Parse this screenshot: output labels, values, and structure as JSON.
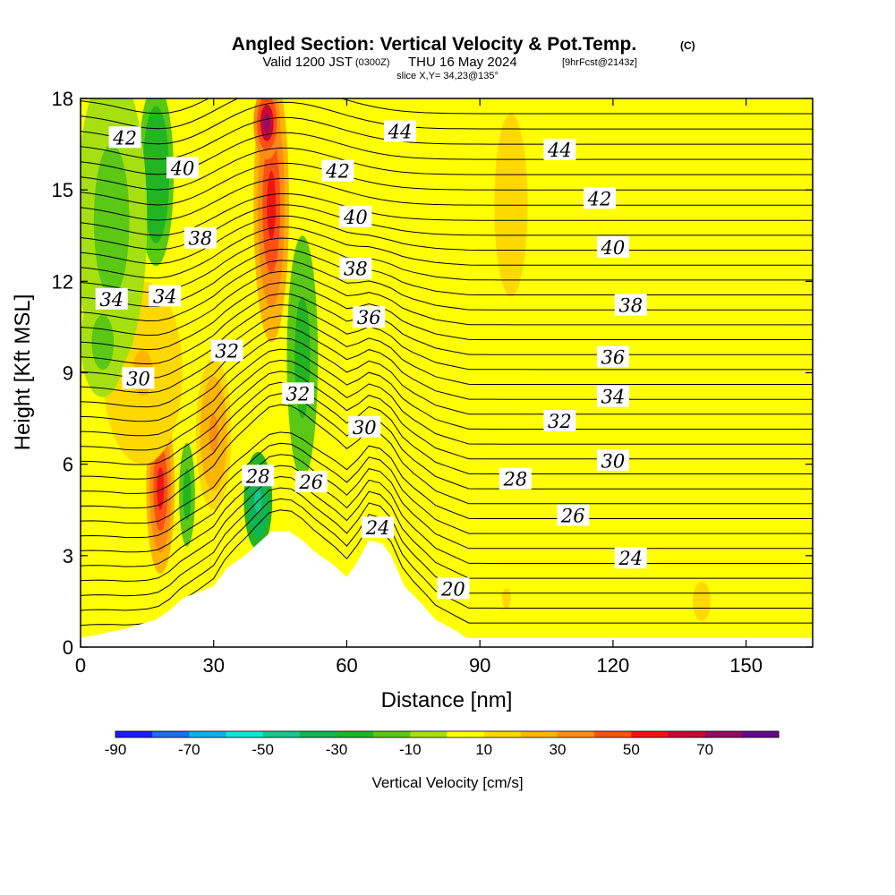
{
  "title": {
    "main": "Angled Section: Vertical Velocity & Pot.Temp.",
    "main_unit": "(C)",
    "valid_prefix": "Valid 1200 JST",
    "valid_utc": "(0300Z)",
    "valid_date": "THU 16 May 2024",
    "forecast": "[9hrFcst@2143z]",
    "slice": "slice X,Y= 34,23@135°"
  },
  "colorbar": {
    "label": "Vertical Velocity [cm/s]",
    "tick_labels": [
      "-90",
      "-70",
      "-50",
      "-30",
      "-10",
      "10",
      "30",
      "50",
      "70"
    ],
    "levels": [
      -90,
      -80,
      -70,
      -60,
      -50,
      -40,
      -30,
      -20,
      -10,
      0,
      10,
      20,
      30,
      40,
      50,
      60,
      70,
      80
    ],
    "colors": [
      "#1c1cff",
      "#1e6cf0",
      "#10b0ee",
      "#10e6d6",
      "#18c88c",
      "#10b450",
      "#22b422",
      "#5ac814",
      "#a6e010",
      "#ffff00",
      "#ffd800",
      "#ffb400",
      "#ff8c14",
      "#ff5014",
      "#f01414",
      "#c80a32",
      "#960a64",
      "#640a8c"
    ]
  },
  "chart_data": {
    "type": "heatmap",
    "title": "Angled Section: Vertical Velocity & Pot.Temp. (C)",
    "xlabel": "Distance [nm]",
    "ylabel": "Height [Kft MSL]",
    "xlim": [
      0,
      165
    ],
    "ylim": [
      0,
      18
    ],
    "x_ticks": [
      0,
      30,
      60,
      90,
      120,
      150
    ],
    "y_ticks": [
      0,
      3,
      6,
      9,
      12,
      15,
      18
    ],
    "fill_variable": "Vertical Velocity [cm/s]",
    "contour_variable": "Potential Temperature (C)",
    "contour_labels": [
      {
        "value": "42",
        "x": 10,
        "y": 16.7
      },
      {
        "value": "40",
        "x": 23,
        "y": 15.7
      },
      {
        "value": "38",
        "x": 27,
        "y": 13.4
      },
      {
        "value": "34",
        "x": 7,
        "y": 11.4
      },
      {
        "value": "34",
        "x": 19,
        "y": 11.5
      },
      {
        "value": "32",
        "x": 33,
        "y": 9.7
      },
      {
        "value": "30",
        "x": 13,
        "y": 8.8
      },
      {
        "value": "32",
        "x": 49,
        "y": 8.3
      },
      {
        "value": "28",
        "x": 40,
        "y": 5.6
      },
      {
        "value": "26",
        "x": 52,
        "y": 5.4
      },
      {
        "value": "44",
        "x": 72,
        "y": 16.9
      },
      {
        "value": "42",
        "x": 58,
        "y": 15.6
      },
      {
        "value": "40",
        "x": 62,
        "y": 14.1
      },
      {
        "value": "38",
        "x": 62,
        "y": 12.4
      },
      {
        "value": "36",
        "x": 65,
        "y": 10.8
      },
      {
        "value": "30",
        "x": 64,
        "y": 7.2
      },
      {
        "value": "24",
        "x": 67,
        "y": 3.9
      },
      {
        "value": "20",
        "x": 84,
        "y": 1.9
      },
      {
        "value": "44",
        "x": 108,
        "y": 16.3
      },
      {
        "value": "42",
        "x": 117,
        "y": 14.7
      },
      {
        "value": "40",
        "x": 120,
        "y": 13.1
      },
      {
        "value": "38",
        "x": 124,
        "y": 11.2
      },
      {
        "value": "36",
        "x": 120,
        "y": 9.5
      },
      {
        "value": "34",
        "x": 120,
        "y": 8.2
      },
      {
        "value": "32",
        "x": 108,
        "y": 7.4
      },
      {
        "value": "30",
        "x": 120,
        "y": 6.1
      },
      {
        "value": "28",
        "x": 98,
        "y": 5.5
      },
      {
        "value": "26",
        "x": 111,
        "y": 4.3
      },
      {
        "value": "24",
        "x": 124,
        "y": 2.9
      }
    ],
    "terrain_profile": [
      {
        "x": 0,
        "y": 0.3
      },
      {
        "x": 10,
        "y": 0.6
      },
      {
        "x": 17,
        "y": 0.9
      },
      {
        "x": 20,
        "y": 1.2
      },
      {
        "x": 23,
        "y": 1.6
      },
      {
        "x": 30,
        "y": 2.0
      },
      {
        "x": 33,
        "y": 2.6
      },
      {
        "x": 37,
        "y": 3.0
      },
      {
        "x": 40,
        "y": 3.4
      },
      {
        "x": 43,
        "y": 3.8
      },
      {
        "x": 47,
        "y": 3.8
      },
      {
        "x": 50,
        "y": 3.5
      },
      {
        "x": 53,
        "y": 3.1
      },
      {
        "x": 57,
        "y": 2.7
      },
      {
        "x": 60,
        "y": 2.3
      },
      {
        "x": 62,
        "y": 2.7
      },
      {
        "x": 65,
        "y": 3.5
      },
      {
        "x": 68,
        "y": 3.4
      },
      {
        "x": 70,
        "y": 3.0
      },
      {
        "x": 73,
        "y": 2.0
      },
      {
        "x": 77,
        "y": 1.4
      },
      {
        "x": 80,
        "y": 0.9
      },
      {
        "x": 85,
        "y": 0.5
      },
      {
        "x": 87,
        "y": 0.3
      },
      {
        "x": 165,
        "y": 0.3
      }
    ],
    "vertical_velocity_cells": [
      {
        "label": "updraft",
        "x": 18,
        "y": 5.2,
        "half_width": 3.2,
        "half_height": 2.8,
        "value": 55
      },
      {
        "label": "updraft",
        "x": 14,
        "y": 9.0,
        "half_width": 9,
        "half_height": 3.0,
        "value": 22
      },
      {
        "label": "updraft",
        "x": 30,
        "y": 7.0,
        "half_width": 4,
        "half_height": 2.5,
        "value": 30
      },
      {
        "label": "updraft",
        "x": 43,
        "y": 14.5,
        "half_width": 4,
        "half_height": 4.5,
        "value": 55
      },
      {
        "label": "updraft",
        "x": 42,
        "y": 17.2,
        "half_width": 3,
        "half_height": 1.2,
        "value": 72
      },
      {
        "label": "updraft",
        "x": 97,
        "y": 14.5,
        "half_width": 5,
        "half_height": 4.0,
        "value": 18
      },
      {
        "label": "updraft",
        "x": 140,
        "y": 1.5,
        "half_width": 4,
        "half_height": 1.3,
        "value": 12
      },
      {
        "label": "updraft",
        "x": 96,
        "y": 1.6,
        "half_width": 4,
        "half_height": 1.3,
        "value": 10
      },
      {
        "label": "downdraft",
        "x": 17,
        "y": 15.5,
        "half_width": 4,
        "half_height": 3.0,
        "value": -30
      },
      {
        "label": "downdraft",
        "x": 7,
        "y": 14.0,
        "half_width": 8,
        "half_height": 5.0,
        "value": -12
      },
      {
        "label": "downdraft",
        "x": 50,
        "y": 9.5,
        "half_width": 3.5,
        "half_height": 4.0,
        "value": -28
      },
      {
        "label": "downdraft",
        "x": 40,
        "y": 4.8,
        "half_width": 3.2,
        "half_height": 1.6,
        "value": -45
      },
      {
        "label": "downdraft",
        "x": 24,
        "y": 5.0,
        "half_width": 1.8,
        "half_height": 1.7,
        "value": -25
      },
      {
        "label": "downdraft",
        "x": 5,
        "y": 10.0,
        "half_width": 5,
        "half_height": 1.8,
        "value": -12
      }
    ]
  }
}
